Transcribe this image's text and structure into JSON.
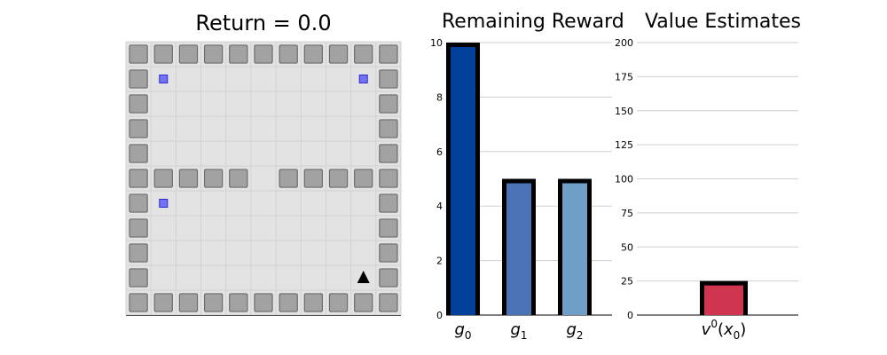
{
  "game": {
    "title": "Return = 0.0",
    "grid": {
      "rows": 11,
      "cols": 11,
      "walls": [
        [
          0,
          0
        ],
        [
          0,
          1
        ],
        [
          0,
          2
        ],
        [
          0,
          3
        ],
        [
          0,
          4
        ],
        [
          0,
          5
        ],
        [
          0,
          6
        ],
        [
          0,
          7
        ],
        [
          0,
          8
        ],
        [
          0,
          9
        ],
        [
          0,
          10
        ],
        [
          1,
          0
        ],
        [
          1,
          10
        ],
        [
          2,
          0
        ],
        [
          2,
          10
        ],
        [
          3,
          0
        ],
        [
          3,
          10
        ],
        [
          4,
          0
        ],
        [
          4,
          10
        ],
        [
          5,
          0
        ],
        [
          5,
          1
        ],
        [
          5,
          2
        ],
        [
          5,
          3
        ],
        [
          5,
          4
        ],
        [
          5,
          6
        ],
        [
          5,
          7
        ],
        [
          5,
          8
        ],
        [
          5,
          9
        ],
        [
          5,
          10
        ],
        [
          6,
          0
        ],
        [
          6,
          10
        ],
        [
          7,
          0
        ],
        [
          7,
          10
        ],
        [
          8,
          0
        ],
        [
          8,
          10
        ],
        [
          9,
          0
        ],
        [
          9,
          10
        ],
        [
          10,
          0
        ],
        [
          10,
          1
        ],
        [
          10,
          2
        ],
        [
          10,
          3
        ],
        [
          10,
          4
        ],
        [
          10,
          5
        ],
        [
          10,
          6
        ],
        [
          10,
          7
        ],
        [
          10,
          8
        ],
        [
          10,
          9
        ],
        [
          10,
          10
        ]
      ],
      "goals": [
        [
          1,
          1
        ],
        [
          1,
          9
        ],
        [
          6,
          1
        ]
      ],
      "agent": [
        9,
        9
      ]
    },
    "colors": {
      "floor": "#e3e3e3",
      "wall": "#a2a2a2",
      "goal": "#7373f5",
      "agent": "#000000"
    }
  },
  "chart_data": [
    {
      "type": "bar",
      "title": "Remaining Reward",
      "categories": [
        "g0",
        "g1",
        "g2"
      ],
      "category_labels": [
        {
          "base": "g",
          "sub": "0"
        },
        {
          "base": "g",
          "sub": "1"
        },
        {
          "base": "g",
          "sub": "2"
        }
      ],
      "values": [
        10,
        5,
        5
      ],
      "ylim": [
        0,
        10
      ],
      "yticks": [
        0,
        2,
        4,
        6,
        8,
        10
      ],
      "colors": [
        "#003f9a",
        "#4a72b4",
        "#6f9fc7"
      ],
      "grid": true
    },
    {
      "type": "bar",
      "title": "Value Estimates",
      "categories": [
        "v0(x0)"
      ],
      "category_labels": [
        {
          "base": "v",
          "sup": "0",
          "paren_base": "x",
          "paren_sub": "0"
        }
      ],
      "values": [
        25
      ],
      "ylim": [
        0,
        200
      ],
      "yticks": [
        0,
        25,
        50,
        75,
        100,
        125,
        150,
        175,
        200
      ],
      "colors": [
        "#d03550"
      ],
      "grid": true
    }
  ]
}
